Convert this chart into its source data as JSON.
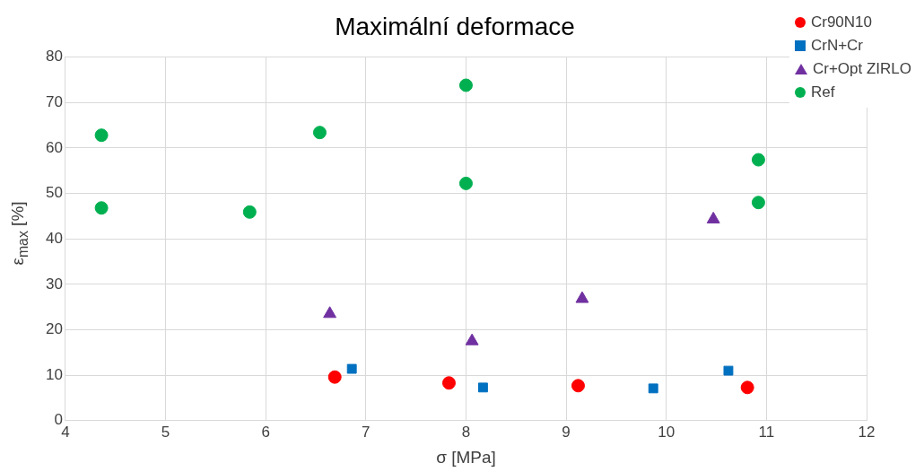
{
  "chart_data": {
    "type": "scatter",
    "title": "Maximální deformace",
    "xlabel": "σ [MPa]",
    "ylabel": "ε$_{max}$ [%]",
    "xlim": [
      4,
      12
    ],
    "xticks": [
      4,
      5,
      6,
      7,
      8,
      9,
      10,
      11,
      12
    ],
    "ylim": [
      0,
      80
    ],
    "yticks": [
      0,
      10,
      20,
      30,
      40,
      50,
      60,
      70,
      80
    ],
    "grid": true,
    "legend": "top right",
    "series": [
      {
        "name": "Cr90N10",
        "color": "#ff0000",
        "marker": "circle",
        "x": [
          6.69,
          7.83,
          9.12,
          10.81
        ],
        "values": [
          9.6,
          8.3,
          7.7,
          7.3
        ]
      },
      {
        "name": "CrN+Cr",
        "color": "#0070c0",
        "marker": "square",
        "x": [
          6.86,
          8.17,
          9.87,
          10.62
        ],
        "values": [
          11.4,
          7.3,
          7.1,
          11.0
        ]
      },
      {
        "name": "Cr+Opt ZIRLO",
        "color": "#7030a0",
        "marker": "triangle",
        "x": [
          6.64,
          8.06,
          9.16,
          10.47
        ],
        "values": [
          23.5,
          17.5,
          26.8,
          44.3
        ]
      },
      {
        "name": "Ref",
        "color": "#00b050",
        "marker": "circle",
        "x": [
          4.36,
          4.36,
          5.84,
          6.54,
          8.0,
          8.0,
          10.92,
          10.92
        ],
        "values": [
          62.8,
          46.8,
          45.9,
          63.4,
          73.8,
          52.2,
          57.4,
          48.0
        ]
      }
    ]
  }
}
